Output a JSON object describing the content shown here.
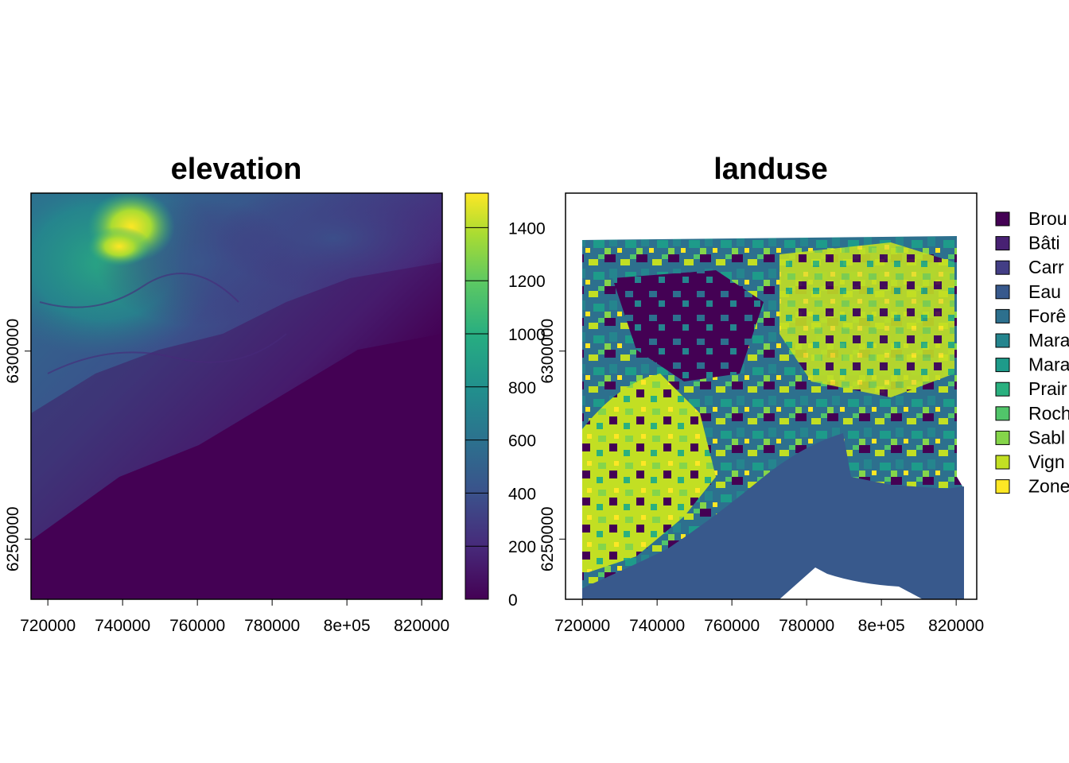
{
  "chart_data": [
    {
      "type": "heatmap",
      "title": "elevation",
      "x_ticks": [
        {
          "value": 720000,
          "label": "720000"
        },
        {
          "value": 740000,
          "label": "740000"
        },
        {
          "value": 760000,
          "label": "760000"
        },
        {
          "value": 780000,
          "label": "780000"
        },
        {
          "value": 800000,
          "label": "8e+05"
        },
        {
          "value": 820000,
          "label": "820000"
        }
      ],
      "y_ticks": [
        {
          "value": 6250000,
          "label": "6250000"
        },
        {
          "value": 6300000,
          "label": "6300000"
        }
      ],
      "xlim": [
        715500,
        825500
      ],
      "ylim": [
        6234000,
        6342000
      ],
      "colorbar": {
        "range": [
          0,
          1530
        ],
        "ticks": [
          0,
          200,
          400,
          600,
          800,
          1000,
          1200,
          1400
        ],
        "tick_labels": [
          "0",
          "200",
          "400",
          "600",
          "800",
          "1000",
          "1200",
          "1400"
        ],
        "colors": [
          "#440154",
          "#472a7a",
          "#3b518b",
          "#2c718e",
          "#21908d",
          "#27ad81",
          "#5cc863",
          "#aadc32",
          "#fde725"
        ]
      }
    },
    {
      "type": "heatmap",
      "title": "landuse",
      "x_ticks": [
        {
          "value": 720000,
          "label": "720000"
        },
        {
          "value": 740000,
          "label": "740000"
        },
        {
          "value": 760000,
          "label": "760000"
        },
        {
          "value": 780000,
          "label": "780000"
        },
        {
          "value": 800000,
          "label": "8e+05"
        },
        {
          "value": 820000,
          "label": "820000"
        }
      ],
      "y_ticks": [
        {
          "value": 6250000,
          "label": "6250000"
        },
        {
          "value": 6300000,
          "label": "6300000"
        }
      ],
      "xlim": [
        715500,
        825500
      ],
      "ylim": [
        6234000,
        6342000
      ],
      "legend": {
        "position": "right",
        "entries": [
          {
            "label": "Brou",
            "color": "#440154"
          },
          {
            "label": "Bâti",
            "color": "#482173"
          },
          {
            "label": "Carr",
            "color": "#433e85"
          },
          {
            "label": "Eau",
            "color": "#38598c"
          },
          {
            "label": "Forê",
            "color": "#2d708e"
          },
          {
            "label": "Mara",
            "color": "#25858e"
          },
          {
            "label": "Mara",
            "color": "#1e9b8a"
          },
          {
            "label": "Prair",
            "color": "#2ab07f"
          },
          {
            "label": "Roch",
            "color": "#51c56a"
          },
          {
            "label": "Sabl",
            "color": "#85d54a"
          },
          {
            "label": "Vign",
            "color": "#c2df23"
          },
          {
            "label": "Zone",
            "color": "#fde725"
          }
        ]
      }
    }
  ]
}
